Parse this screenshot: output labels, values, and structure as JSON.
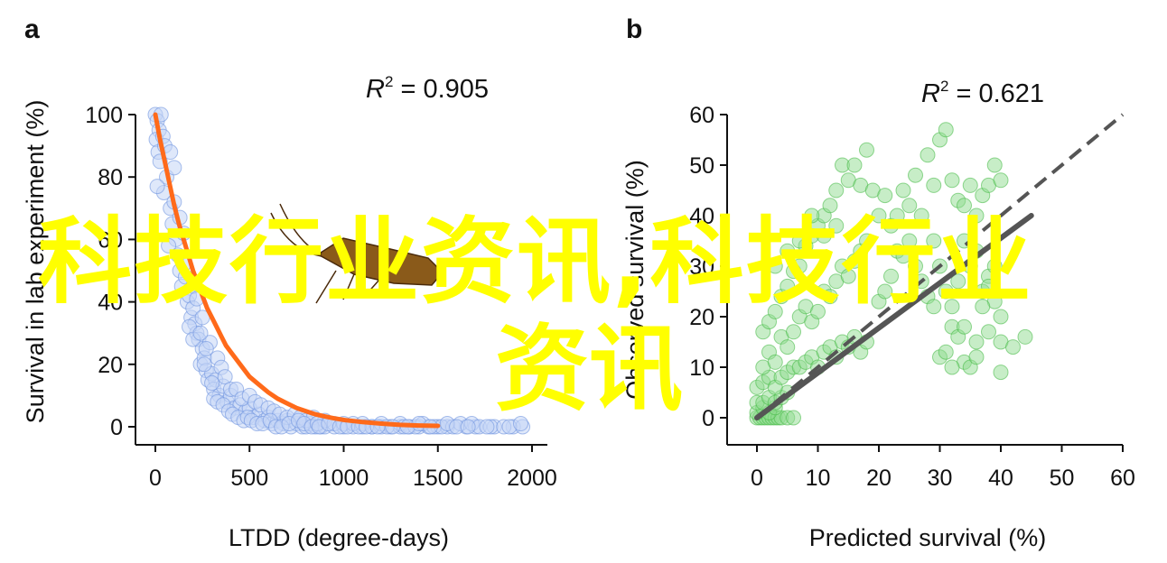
{
  "watermark": {
    "line1": "科技行业资讯,科技行业",
    "line2": "资讯"
  },
  "colors": {
    "panel_a_points_fill": "#c5d5f5",
    "panel_a_points_stroke": "#6f95e0",
    "panel_a_curve": "#ff6a1a",
    "panel_b_points_fill": "#8fdc8f",
    "panel_b_points_stroke": "#3fb83f",
    "panel_b_line": "#555555",
    "watermark": "#ffff00",
    "insect": "#8a5a1a"
  },
  "chart_data": [
    {
      "panel": "a",
      "type": "scatter",
      "annotation": "R² = 0.905",
      "annotation_base": "R",
      "annotation_sup": "2",
      "annotation_rest": " = 0.905",
      "xlabel": "LTDD (degree-days)",
      "ylabel": "Survival in lab experiment (%)",
      "xlim": [
        -80,
        2030
      ],
      "ylim": [
        -5,
        100
      ],
      "xticks": [
        0,
        500,
        1000,
        1500,
        2000
      ],
      "yticks": [
        0,
        20,
        40,
        60,
        80,
        100
      ],
      "grid": false,
      "points": [
        [
          0,
          100
        ],
        [
          10,
          98
        ],
        [
          20,
          95
        ],
        [
          5,
          92
        ],
        [
          15,
          88
        ],
        [
          30,
          100
        ],
        [
          40,
          93
        ],
        [
          25,
          85
        ],
        [
          50,
          90
        ],
        [
          60,
          80
        ],
        [
          45,
          75
        ],
        [
          10,
          77
        ],
        [
          80,
          70
        ],
        [
          100,
          72
        ],
        [
          90,
          65
        ],
        [
          110,
          60
        ],
        [
          70,
          58
        ],
        [
          120,
          55
        ],
        [
          130,
          50
        ],
        [
          150,
          52
        ],
        [
          140,
          45
        ],
        [
          160,
          48
        ],
        [
          170,
          40
        ],
        [
          180,
          42
        ],
        [
          190,
          35
        ],
        [
          200,
          38
        ],
        [
          210,
          33
        ],
        [
          220,
          30
        ],
        [
          230,
          28
        ],
        [
          250,
          25
        ],
        [
          240,
          20
        ],
        [
          260,
          22
        ],
        [
          270,
          18
        ],
        [
          280,
          15
        ],
        [
          300,
          17
        ],
        [
          320,
          15
        ],
        [
          310,
          12
        ],
        [
          340,
          10
        ],
        [
          360,
          13
        ],
        [
          380,
          8
        ],
        [
          400,
          10
        ],
        [
          420,
          6
        ],
        [
          450,
          7
        ],
        [
          480,
          5
        ],
        [
          500,
          6
        ],
        [
          520,
          3
        ],
        [
          550,
          4
        ],
        [
          580,
          2
        ],
        [
          600,
          3
        ],
        [
          620,
          1
        ],
        [
          650,
          2
        ],
        [
          680,
          1
        ],
        [
          700,
          2
        ],
        [
          720,
          0
        ],
        [
          750,
          1
        ],
        [
          780,
          0
        ],
        [
          800,
          0
        ],
        [
          820,
          1
        ],
        [
          850,
          0
        ],
        [
          880,
          0
        ],
        [
          900,
          0
        ],
        [
          950,
          0
        ],
        [
          1000,
          0
        ],
        [
          1050,
          0
        ],
        [
          1100,
          0
        ],
        [
          1150,
          0
        ],
        [
          1200,
          0
        ],
        [
          1250,
          0
        ],
        [
          1300,
          0
        ],
        [
          1350,
          0
        ],
        [
          1400,
          0
        ],
        [
          1450,
          0
        ],
        [
          1500,
          0
        ],
        [
          1550,
          0
        ],
        [
          1650,
          0
        ],
        [
          1700,
          0
        ],
        [
          1800,
          0
        ],
        [
          1900,
          0
        ],
        [
          1950,
          0
        ],
        [
          100,
          83
        ],
        [
          80,
          88
        ],
        [
          150,
          62
        ],
        [
          130,
          67
        ],
        [
          200,
          45
        ],
        [
          220,
          41
        ],
        [
          250,
          35
        ],
        [
          290,
          27
        ],
        [
          330,
          22
        ],
        [
          350,
          19
        ],
        [
          370,
          16
        ],
        [
          400,
          12
        ],
        [
          430,
          12
        ],
        [
          460,
          9
        ],
        [
          500,
          10
        ],
        [
          530,
          8
        ],
        [
          560,
          7
        ],
        [
          600,
          6
        ],
        [
          630,
          5
        ],
        [
          660,
          4
        ],
        [
          700,
          3
        ],
        [
          740,
          4
        ],
        [
          770,
          3
        ],
        [
          800,
          2
        ],
        [
          840,
          3
        ],
        [
          900,
          2
        ],
        [
          950,
          1
        ],
        [
          1000,
          1
        ],
        [
          1050,
          1
        ],
        [
          1100,
          1
        ],
        [
          1150,
          0
        ],
        [
          1200,
          1
        ],
        [
          1230,
          0
        ],
        [
          1300,
          1
        ],
        [
          1320,
          0
        ],
        [
          1380,
          0
        ],
        [
          1420,
          1
        ],
        [
          1480,
          0
        ],
        [
          1520,
          0
        ],
        [
          1580,
          0
        ],
        [
          1620,
          1
        ],
        [
          1680,
          1
        ],
        [
          1720,
          0
        ],
        [
          1780,
          0
        ],
        [
          1850,
          0
        ],
        [
          180,
          32
        ],
        [
          200,
          28
        ],
        [
          240,
          30
        ],
        [
          260,
          20
        ],
        [
          270,
          25
        ],
        [
          300,
          14
        ],
        [
          310,
          9
        ],
        [
          330,
          8
        ],
        [
          360,
          7
        ],
        [
          390,
          5
        ],
        [
          410,
          4
        ],
        [
          440,
          3
        ],
        [
          470,
          2
        ],
        [
          490,
          3
        ],
        [
          510,
          2
        ],
        [
          540,
          1
        ],
        [
          570,
          1
        ],
        [
          610,
          2
        ],
        [
          640,
          0
        ],
        [
          670,
          0
        ],
        [
          710,
          1
        ],
        [
          760,
          2
        ],
        [
          790,
          1
        ],
        [
          830,
          0
        ],
        [
          860,
          1
        ],
        [
          870,
          0
        ],
        [
          920,
          1
        ],
        [
          980,
          0
        ],
        [
          1020,
          0
        ],
        [
          1080,
          0
        ],
        [
          1120,
          0
        ],
        [
          1180,
          0
        ],
        [
          1260,
          0
        ],
        [
          1340,
          0
        ],
        [
          1400,
          1
        ],
        [
          1460,
          0
        ],
        [
          1550,
          1
        ],
        [
          1600,
          0
        ],
        [
          1660,
          0
        ],
        [
          1760,
          0
        ],
        [
          1880,
          0
        ],
        [
          1940,
          1
        ]
      ],
      "fit_curve": [
        [
          0,
          100
        ],
        [
          25,
          92
        ],
        [
          50,
          85
        ],
        [
          75,
          78
        ],
        [
          100,
          71
        ],
        [
          125,
          65
        ],
        [
          150,
          60
        ],
        [
          175,
          55
        ],
        [
          200,
          50
        ],
        [
          225,
          46
        ],
        [
          250,
          42
        ],
        [
          275,
          38
        ],
        [
          300,
          35
        ],
        [
          325,
          32
        ],
        [
          350,
          29
        ],
        [
          375,
          26
        ],
        [
          400,
          24
        ],
        [
          450,
          20
        ],
        [
          500,
          16
        ],
        [
          550,
          13.5
        ],
        [
          600,
          11
        ],
        [
          650,
          9
        ],
        [
          700,
          7.5
        ],
        [
          750,
          6
        ],
        [
          800,
          5
        ],
        [
          850,
          4
        ],
        [
          900,
          3.3
        ],
        [
          950,
          2.7
        ],
        [
          1000,
          2.2
        ],
        [
          1100,
          1.5
        ],
        [
          1200,
          1
        ],
        [
          1300,
          0.6
        ],
        [
          1400,
          0.4
        ],
        [
          1500,
          0.3
        ]
      ]
    },
    {
      "panel": "b",
      "type": "scatter",
      "annotation": "R² = 0.621",
      "annotation_base": "R",
      "annotation_sup": "2",
      "annotation_rest": " = 0.621",
      "xlabel": "Predicted survival (%)",
      "ylabel": "Observed survival (%)",
      "xlim": [
        -4,
        60
      ],
      "ylim": [
        -5,
        60
      ],
      "xticks": [
        0,
        10,
        20,
        30,
        40,
        50,
        60
      ],
      "yticks": [
        0,
        10,
        20,
        30,
        40,
        50,
        60
      ],
      "grid": false,
      "points": [
        [
          0,
          0
        ],
        [
          0.5,
          0
        ],
        [
          1,
          0
        ],
        [
          1.5,
          0
        ],
        [
          2,
          0
        ],
        [
          2.5,
          0
        ],
        [
          3,
          0
        ],
        [
          3.5,
          0
        ],
        [
          4,
          0
        ],
        [
          5,
          0
        ],
        [
          6,
          0
        ],
        [
          0,
          1
        ],
        [
          1,
          2
        ],
        [
          2,
          1
        ],
        [
          3,
          2
        ],
        [
          0,
          3
        ],
        [
          1,
          3
        ],
        [
          2,
          4
        ],
        [
          3,
          3
        ],
        [
          4,
          4
        ],
        [
          5,
          5
        ],
        [
          0,
          6
        ],
        [
          1,
          7
        ],
        [
          2,
          8
        ],
        [
          3,
          6
        ],
        [
          4,
          8
        ],
        [
          5,
          9
        ],
        [
          6,
          10
        ],
        [
          7,
          10
        ],
        [
          8,
          11
        ],
        [
          9,
          12
        ],
        [
          10,
          10
        ],
        [
          11,
          13
        ],
        [
          12,
          14
        ],
        [
          13,
          12
        ],
        [
          14,
          15
        ],
        [
          15,
          14
        ],
        [
          16,
          16
        ],
        [
          17,
          13
        ],
        [
          18,
          15
        ],
        [
          1,
          10
        ],
        [
          2,
          13
        ],
        [
          3,
          11
        ],
        [
          4,
          16
        ],
        [
          5,
          14
        ],
        [
          6,
          17
        ],
        [
          7,
          20
        ],
        [
          8,
          22
        ],
        [
          9,
          19
        ],
        [
          10,
          21
        ],
        [
          11,
          25
        ],
        [
          12,
          24
        ],
        [
          13,
          27
        ],
        [
          14,
          30
        ],
        [
          15,
          28
        ],
        [
          16,
          31
        ],
        [
          17,
          33
        ],
        [
          18,
          35
        ],
        [
          1,
          17
        ],
        [
          2,
          19
        ],
        [
          3,
          21
        ],
        [
          4,
          24
        ],
        [
          5,
          26
        ],
        [
          6,
          29
        ],
        [
          7,
          30
        ],
        [
          8,
          34
        ],
        [
          9,
          36
        ],
        [
          10,
          38
        ],
        [
          11,
          40
        ],
        [
          12,
          42
        ],
        [
          13,
          45
        ],
        [
          14,
          50
        ],
        [
          15,
          47
        ],
        [
          16,
          50
        ],
        [
          17,
          46
        ],
        [
          18,
          53
        ],
        [
          20,
          40
        ],
        [
          22,
          38
        ],
        [
          24,
          45
        ],
        [
          26,
          48
        ],
        [
          28,
          52
        ],
        [
          29,
          46
        ],
        [
          30,
          55
        ],
        [
          31,
          57
        ],
        [
          32,
          47
        ],
        [
          33,
          43
        ],
        [
          34,
          42
        ],
        [
          35,
          46
        ],
        [
          36,
          40
        ],
        [
          37,
          44
        ],
        [
          38,
          46
        ],
        [
          39,
          50
        ],
        [
          40,
          47
        ],
        [
          30,
          30
        ],
        [
          31,
          25
        ],
        [
          32,
          22
        ],
        [
          33,
          27
        ],
        [
          34,
          35
        ],
        [
          35,
          30
        ],
        [
          36,
          33
        ],
        [
          37,
          25
        ],
        [
          38,
          28
        ],
        [
          39,
          23
        ],
        [
          40,
          20
        ],
        [
          30,
          12
        ],
        [
          31,
          13
        ],
        [
          32,
          18
        ],
        [
          33,
          16
        ],
        [
          34,
          11
        ],
        [
          35,
          10
        ],
        [
          36,
          15
        ],
        [
          37,
          22
        ],
        [
          38,
          26
        ],
        [
          39,
          30
        ],
        [
          40,
          15
        ],
        [
          20,
          23
        ],
        [
          21,
          25
        ],
        [
          22,
          28
        ],
        [
          23,
          33
        ],
        [
          24,
          32
        ],
        [
          25,
          35
        ],
        [
          26,
          30
        ],
        [
          27,
          27
        ],
        [
          28,
          24
        ],
        [
          29,
          22
        ],
        [
          3,
          30
        ],
        [
          5,
          33
        ],
        [
          7,
          35
        ],
        [
          9,
          40
        ],
        [
          11,
          36
        ],
        [
          13,
          38
        ],
        [
          19,
          45
        ],
        [
          21,
          44
        ],
        [
          23,
          40
        ],
        [
          25,
          42
        ],
        [
          27,
          40
        ],
        [
          29,
          35
        ],
        [
          32,
          10
        ],
        [
          34,
          18
        ],
        [
          36,
          12
        ],
        [
          38,
          17
        ],
        [
          40,
          9
        ],
        [
          42,
          14
        ],
        [
          44,
          16
        ]
      ],
      "identity_line": [
        [
          0,
          0
        ],
        [
          60,
          60
        ]
      ],
      "fit_line": [
        [
          0,
          0
        ],
        [
          45,
          40
        ]
      ]
    }
  ]
}
